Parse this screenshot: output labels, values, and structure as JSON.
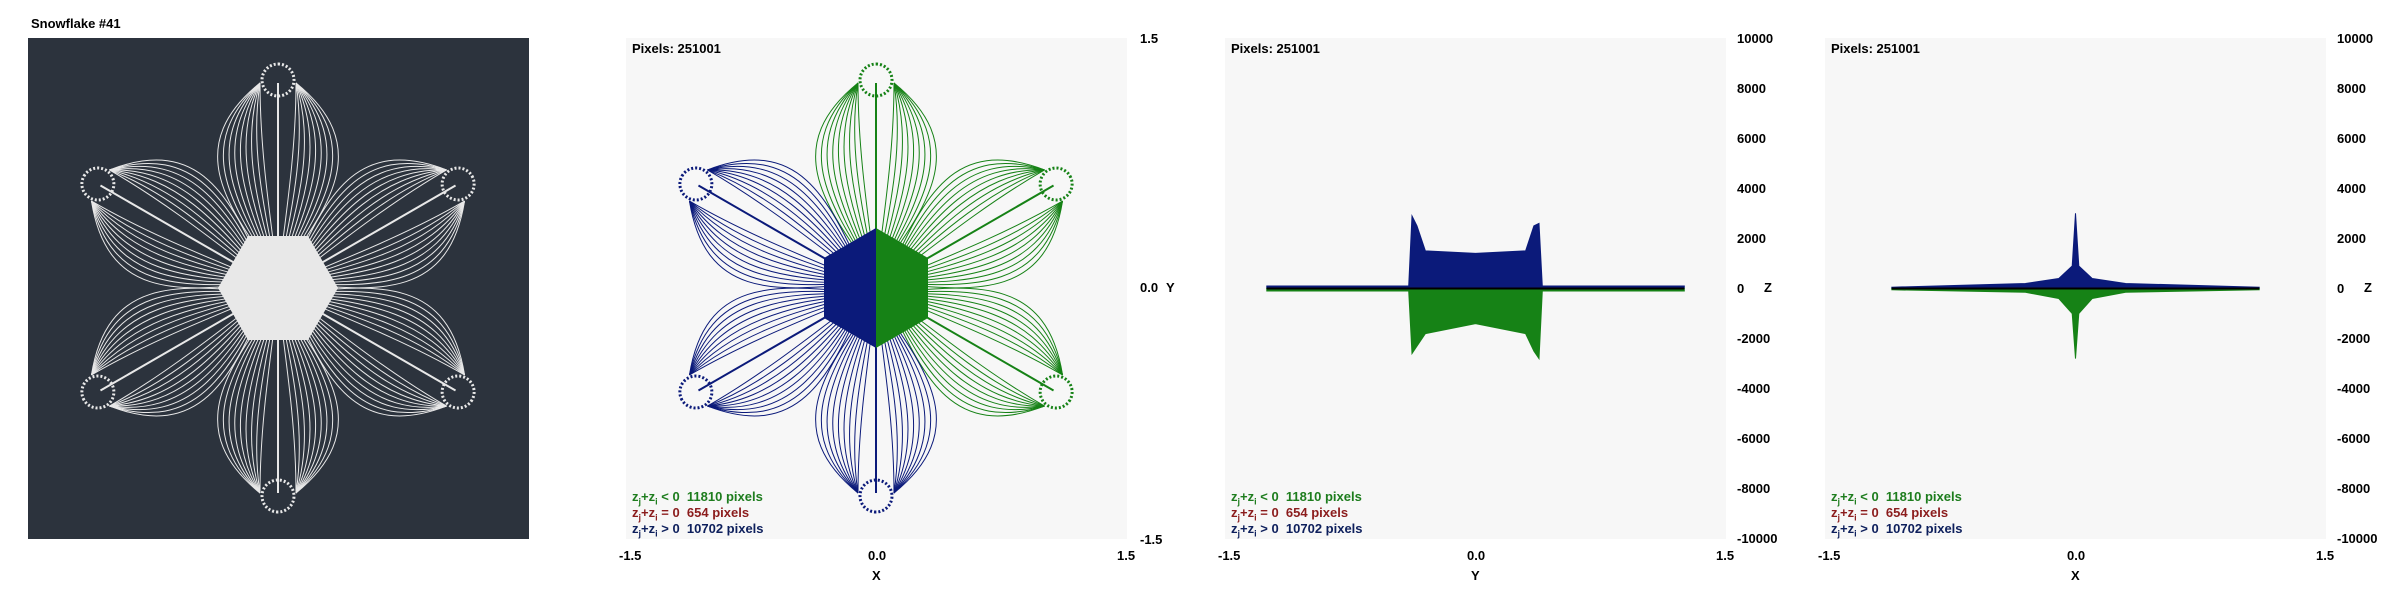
{
  "panel1": {
    "title": "Snowflake #41"
  },
  "colors": {
    "background_dark": "#2c333d",
    "neg": "#168216",
    "pos": "#0b1a7a",
    "plot_bg": "#f7f7f7",
    "fractal_fg": "#e8e8e8"
  },
  "legend": {
    "neg": {
      "prefix": "z",
      "mid": "+z",
      "cond": " < 0",
      "count": "11810 pixels"
    },
    "zero": {
      "prefix": "z",
      "mid": "+z",
      "cond": " = 0",
      "count": "654 pixels"
    },
    "pos": {
      "prefix": "z",
      "mid": "+z",
      "cond": " > 0",
      "count": "10702 pixels"
    },
    "sub_j": "j",
    "sub_i": "i"
  },
  "chart_data": [
    {
      "type": "scatter",
      "title": "Pixels: 251001",
      "xlabel": "X",
      "ylabel": "Y",
      "xlim": [
        -1.5,
        1.5
      ],
      "ylim": [
        -1.5,
        1.5
      ],
      "x_ticks": [
        "-1.5",
        "0.0",
        "1.5"
      ],
      "y_ticks": [
        "1.5",
        "0.0",
        "-1.5"
      ]
    },
    {
      "type": "area",
      "title": "Pixels: 251001",
      "xlabel": "Y",
      "ylabel": "Z",
      "xlim": [
        -1.5,
        1.5
      ],
      "ylim": [
        -10000,
        10000
      ],
      "x_ticks": [
        "-1.5",
        "0.0",
        "1.5"
      ],
      "y_ticks": [
        "10000",
        "8000",
        "6000",
        "4000",
        "2000",
        "0",
        "-2000",
        "-4000",
        "-6000",
        "-8000",
        "-10000"
      ],
      "series": [
        {
          "name": "z_j+z_i > 0",
          "x": [
            -1.25,
            -0.4,
            -0.38,
            -0.35,
            -0.3,
            0.0,
            0.3,
            0.35,
            0.38,
            0.4,
            1.25
          ],
          "y": [
            100,
            100,
            2900,
            2500,
            1500,
            1400,
            1500,
            2500,
            2600,
            100,
            100
          ]
        },
        {
          "name": "z_j+z_i < 0",
          "x": [
            -1.25,
            -0.4,
            -0.38,
            -0.35,
            -0.3,
            0.0,
            0.3,
            0.35,
            0.38,
            0.4,
            1.25
          ],
          "y": [
            -100,
            -100,
            -2600,
            -2300,
            -1800,
            -1400,
            -1800,
            -2500,
            -2800,
            -100,
            -100
          ]
        }
      ]
    },
    {
      "type": "area",
      "title": "Pixels: 251001",
      "xlabel": "X",
      "ylabel": "Z",
      "xlim": [
        -1.5,
        1.5
      ],
      "ylim": [
        -10000,
        10000
      ],
      "x_ticks": [
        "-1.5",
        "0.0",
        "1.5"
      ],
      "y_ticks": [
        "10000",
        "8000",
        "6000",
        "4000",
        "2000",
        "0",
        "-2000",
        "-4000",
        "-6000",
        "-8000",
        "-10000"
      ],
      "series": [
        {
          "name": "z_j+z_i > 0",
          "x": [
            -1.1,
            -0.3,
            -0.1,
            -0.02,
            0.0,
            0.02,
            0.1,
            0.3,
            1.1
          ],
          "y": [
            50,
            200,
            400,
            900,
            3000,
            900,
            400,
            200,
            50
          ]
        },
        {
          "name": "z_j+z_i < 0",
          "x": [
            -1.1,
            -0.3,
            -0.1,
            -0.02,
            0.0,
            0.02,
            0.1,
            0.3,
            1.1
          ],
          "y": [
            -50,
            -150,
            -400,
            -1000,
            -2800,
            -1000,
            -400,
            -150,
            -50
          ]
        }
      ]
    }
  ]
}
